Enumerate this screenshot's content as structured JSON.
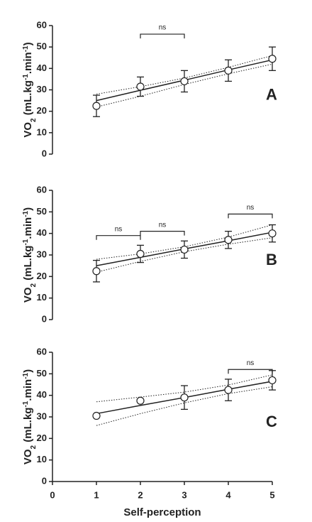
{
  "chart_data": [
    {
      "type": "scatter",
      "label": "A",
      "ylabel": [
        "VO",
        "2",
        " (mL.kg",
        "-1",
        ".min",
        "-1",
        ")"
      ],
      "x": [
        1,
        2,
        3,
        4,
        5
      ],
      "values": [
        22.5,
        31.5,
        34,
        39,
        44.5
      ],
      "errors": [
        5,
        4.5,
        5,
        5,
        5.5
      ],
      "fit": [
        25,
        29.8,
        34.5,
        39.3,
        44
      ],
      "fit_upper": [
        28,
        31.5,
        35.5,
        40.5,
        46
      ],
      "fit_lower": [
        22,
        27,
        32.5,
        37.5,
        42
      ],
      "brackets": [
        {
          "x": [
            2,
            3
          ],
          "y": 56,
          "label": "ns"
        }
      ],
      "xlim": [
        0,
        5
      ],
      "ylim": [
        0,
        60
      ],
      "yticks": [
        0,
        10,
        20,
        30,
        40,
        50,
        60
      ]
    },
    {
      "type": "scatter",
      "label": "B",
      "ylabel": [
        "VO",
        "2",
        " (mL.kg",
        "-1",
        ".min",
        "-1",
        ")"
      ],
      "x": [
        1,
        2,
        3,
        4,
        5
      ],
      "values": [
        22.5,
        30.5,
        32.5,
        37,
        40
      ],
      "errors": [
        5,
        4,
        4,
        4,
        4
      ],
      "fit": [
        25,
        28.9,
        32.8,
        36.6,
        40.5
      ],
      "fit_upper": [
        28,
        30.5,
        33.8,
        38.3,
        44
      ],
      "fit_lower": [
        22,
        27,
        31.5,
        35,
        38
      ],
      "brackets": [
        {
          "x": [
            1,
            2
          ],
          "y": 39,
          "label": "ns"
        },
        {
          "x": [
            2,
            3
          ],
          "y": 41,
          "label": "ns"
        },
        {
          "x": [
            4,
            5
          ],
          "y": 49,
          "label": "ns"
        }
      ],
      "xlim": [
        0,
        5
      ],
      "ylim": [
        0,
        60
      ],
      "yticks": [
        0,
        10,
        20,
        30,
        40,
        50,
        60
      ]
    },
    {
      "type": "scatter",
      "label": "C",
      "ylabel": [
        "VO",
        "2",
        " (mL.kg",
        "-1",
        ".min",
        "-1",
        ")"
      ],
      "xlabel": "Self-perception",
      "x": [
        1,
        2,
        3,
        4,
        5
      ],
      "values": [
        30.5,
        37.5,
        39,
        42.5,
        47
      ],
      "errors": [
        null,
        null,
        5.5,
        5,
        4.5
      ],
      "fit": [
        31.5,
        35.3,
        39,
        42.8,
        46.5
      ],
      "fit_upper": [
        37,
        39.2,
        41.5,
        44.8,
        49.5
      ],
      "fit_lower": [
        26,
        31.5,
        36.5,
        40.8,
        44
      ],
      "brackets": [
        {
          "x": [
            4,
            5
          ],
          "y": 52,
          "label": "ns"
        }
      ],
      "xlim": [
        0,
        5
      ],
      "ylim": [
        0,
        60
      ],
      "yticks": [
        0,
        10,
        20,
        30,
        40,
        50,
        60
      ],
      "xticks": [
        0,
        1,
        2,
        3,
        4,
        5
      ]
    }
  ]
}
